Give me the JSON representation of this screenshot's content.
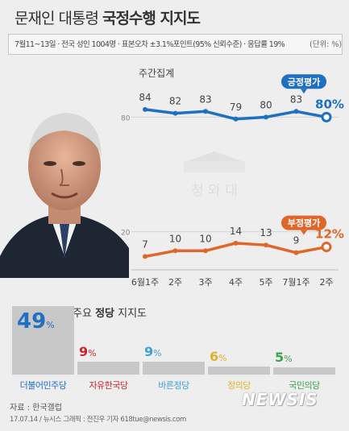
{
  "title": {
    "normal": "문재인 대통령",
    "bold": "국정수행 지지도"
  },
  "subtitle": "7월11~13일 · 전국 성인 1004명 · 표본오차 ±3.1%포인트(95% 신뢰수준) · 응답률 19%",
  "unit": "(단위: %)",
  "weekly_label": "주간집계",
  "watermark": {
    "bottom": "청 와 대"
  },
  "chart_data": {
    "type": "line",
    "x": [
      "6월1주",
      "2주",
      "3주",
      "4주",
      "5주",
      "7월1주",
      "2주"
    ],
    "ylim": [
      0,
      100
    ],
    "y_ticks": [
      80,
      20
    ],
    "grid": true,
    "series": [
      {
        "name": "긍정평가",
        "values": [
          84,
          82,
          83,
          79,
          80,
          83,
          80
        ],
        "color": "#1f6fc2",
        "last_label": "80%"
      },
      {
        "name": "부정평가",
        "values": [
          7,
          10,
          10,
          14,
          13,
          9,
          12
        ],
        "color": "#e0662a",
        "last_label": "12%"
      }
    ]
  },
  "parties": {
    "heading": {
      "prefix": "주요",
      "bold": "정당",
      "suffix": "지지도"
    },
    "chart_data": {
      "type": "bar",
      "categories": [
        "더불어민주당",
        "자유한국당",
        "바른정당",
        "정의당",
        "국민의당"
      ],
      "values": [
        49,
        9,
        9,
        6,
        5
      ],
      "colors": [
        "#1f6fc2",
        "#c8262e",
        "#3fa0d6",
        "#e3b02a",
        "#3aa34a"
      ],
      "value_suffix": "%"
    }
  },
  "source": "자료 : 한국갤럽",
  "credit": "17.07.14 / 뉴시스 그래픽 : 전진우 기자 618tue@newsis.com",
  "logo": "NEWSIS"
}
